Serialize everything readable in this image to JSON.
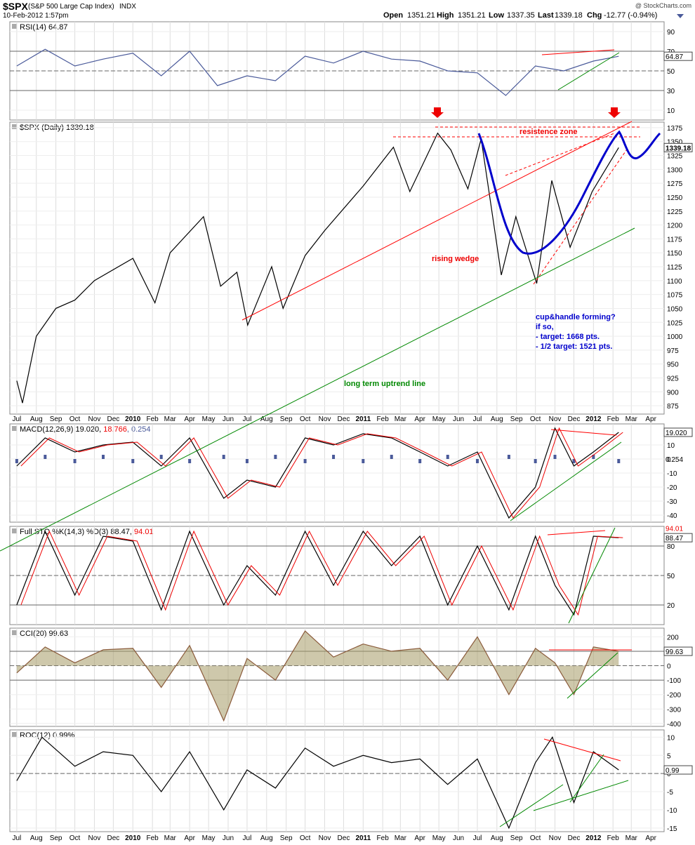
{
  "header": {
    "symbol": "$SPX",
    "name": "(S&P 500 Large Cap Index)",
    "exchange": "INDX",
    "date": "10-Feb-2012 1:57pm",
    "watermark": "@ StockCharts.com",
    "open_label": "Open",
    "open": "1351.21",
    "high_label": "High",
    "high": "1351.21",
    "low_label": "Low",
    "low": "1337.35",
    "last_label": "Last",
    "last": "1339.18",
    "chg_label": "Chg",
    "chg": "-12.77 (-0.94%)"
  },
  "colors": {
    "price": "#000000",
    "annotation_red": "#ff0000",
    "trend_green": "#008000",
    "cup_blue": "#0000cc",
    "rsi": "#4a5a9a",
    "macd_hist": "#4a5a9a",
    "cci_fill": "#a59a66",
    "cci_line": "#8a5a3a"
  },
  "chart_data": [
    {
      "type": "line",
      "panel": "rsi",
      "title": "RSI(14) 64.87",
      "current_value_label": "64.87",
      "y_ticks": [
        "90",
        "70",
        "50",
        "30",
        "10"
      ],
      "ylim": [
        0,
        100
      ],
      "reference_lines": [
        70,
        50,
        30
      ],
      "x": [
        "2009-07-01",
        "2009-08-15",
        "2009-10-01",
        "2009-11-15",
        "2010-01-01",
        "2010-02-15",
        "2010-04-01",
        "2010-05-15",
        "2010-07-01",
        "2010-08-15",
        "2010-10-01",
        "2010-11-15",
        "2011-01-01",
        "2011-02-15",
        "2011-04-01",
        "2011-05-15",
        "2011-07-01",
        "2011-08-15",
        "2011-10-01",
        "2011-11-15",
        "2012-01-01",
        "2012-02-10"
      ],
      "values": [
        55,
        72,
        55,
        62,
        68,
        45,
        70,
        35,
        45,
        40,
        65,
        58,
        70,
        62,
        60,
        50,
        48,
        25,
        55,
        50,
        60,
        64.87
      ]
    },
    {
      "type": "line",
      "panel": "price",
      "title": "$SPX (Daily) 1339.18",
      "current_value_label": "1339.18",
      "y_ticks": [
        "1375",
        "1350",
        "1325",
        "1300",
        "1275",
        "1250",
        "1225",
        "1200",
        "1175",
        "1150",
        "1125",
        "1100",
        "1075",
        "1050",
        "1025",
        "1000",
        "975",
        "950",
        "925",
        "900",
        "875"
      ],
      "ylim": [
        860,
        1385
      ],
      "series": [
        {
          "x": [
            "2009-07-01",
            "2009-07-10",
            "2009-08-01",
            "2009-09-01",
            "2009-10-01",
            "2009-11-01",
            "2010-01-01",
            "2010-02-05",
            "2010-03-01",
            "2010-04-23",
            "2010-05-20",
            "2010-06-15",
            "2010-07-02",
            "2010-08-09",
            "2010-08-27",
            "2010-10-01",
            "2010-11-01",
            "2011-01-01",
            "2011-02-18",
            "2011-03-16",
            "2011-04-29",
            "2011-05-20",
            "2011-06-16",
            "2011-07-07",
            "2011-08-08",
            "2011-08-31",
            "2011-10-03",
            "2011-10-27",
            "2011-11-25",
            "2011-12-30",
            "2012-02-10"
          ],
          "values": [
            920,
            880,
            1000,
            1050,
            1065,
            1100,
            1140,
            1060,
            1150,
            1215,
            1090,
            1115,
            1020,
            1125,
            1050,
            1145,
            1190,
            1270,
            1340,
            1260,
            1365,
            1335,
            1265,
            1355,
            1110,
            1215,
            1095,
            1280,
            1160,
            1260,
            1339.18
          ]
        }
      ],
      "annotations": [
        {
          "text": "resistence zone",
          "color": "red"
        },
        {
          "text": "rising wedge",
          "color": "red"
        },
        {
          "text": "long term uptrend line",
          "color": "green"
        },
        {
          "text": "cup&handle forming?",
          "color": "blue"
        },
        {
          "text": "if so,",
          "color": "blue"
        },
        {
          "text": "- target: 1668 pts.",
          "color": "blue"
        },
        {
          "text": "- 1/2 target: 1521 pts.",
          "color": "blue"
        }
      ]
    },
    {
      "type": "line",
      "panel": "macd",
      "title_main": "MACD(12,26,9) 19.020, ",
      "title_signal": "18.766",
      "title_hist": ", 0.254",
      "current_value_label": "19.020",
      "hist_value_label": "0.254",
      "y_ticks": [
        "10",
        "0",
        "-10",
        "-20",
        "-30",
        "-40"
      ],
      "ylim": [
        -45,
        25
      ],
      "x": [
        "2009-07-01",
        "2009-08-15",
        "2009-10-01",
        "2009-11-15",
        "2010-01-01",
        "2010-02-15",
        "2010-04-01",
        "2010-05-25",
        "2010-07-01",
        "2010-08-15",
        "2010-10-01",
        "2010-11-15",
        "2011-01-01",
        "2011-02-15",
        "2011-04-01",
        "2011-05-15",
        "2011-07-01",
        "2011-08-20",
        "2011-10-01",
        "2011-11-01",
        "2011-12-01",
        "2012-01-01",
        "2012-02-10"
      ],
      "values": [
        -5,
        15,
        5,
        10,
        12,
        -5,
        15,
        -28,
        -15,
        -20,
        15,
        10,
        18,
        15,
        5,
        -5,
        5,
        -42,
        -20,
        22,
        -5,
        5,
        19.02
      ]
    },
    {
      "type": "line",
      "panel": "stochastic",
      "title_main": "Full STO %K(14,3) %D(3) 88.47, ",
      "title_d": "94.01",
      "k_label": "88.47",
      "d_label": "94.01",
      "y_ticks": [
        "80",
        "50",
        "20"
      ],
      "ylim": [
        0,
        100
      ],
      "reference_lines": [
        80,
        50,
        20
      ],
      "x": [
        "2009-07-01",
        "2009-08-15",
        "2009-10-01",
        "2009-11-15",
        "2010-01-01",
        "2010-02-15",
        "2010-04-01",
        "2010-05-25",
        "2010-07-01",
        "2010-08-15",
        "2010-10-01",
        "2010-11-15",
        "2011-01-01",
        "2011-02-15",
        "2011-04-01",
        "2011-05-15",
        "2011-07-01",
        "2011-08-20",
        "2011-10-01",
        "2011-11-01",
        "2011-12-01",
        "2012-01-01",
        "2012-02-10"
      ],
      "values": [
        20,
        95,
        30,
        90,
        85,
        15,
        95,
        20,
        60,
        30,
        95,
        40,
        95,
        60,
        90,
        20,
        80,
        15,
        90,
        40,
        10,
        90,
        88.47
      ]
    },
    {
      "type": "area",
      "panel": "cci",
      "title": "CCI(20) 99.63",
      "current_value_label": "99.63",
      "y_ticks": [
        "200",
        "100",
        "0",
        "-100",
        "-200",
        "-300",
        "-400"
      ],
      "ylim": [
        -420,
        260
      ],
      "reference_lines": [
        100,
        0,
        -100
      ],
      "x": [
        "2009-07-01",
        "2009-08-15",
        "2009-10-01",
        "2009-11-15",
        "2010-01-01",
        "2010-02-15",
        "2010-04-01",
        "2010-05-25",
        "2010-07-01",
        "2010-08-15",
        "2010-10-01",
        "2010-11-15",
        "2011-01-01",
        "2011-02-15",
        "2011-04-01",
        "2011-05-15",
        "2011-07-01",
        "2011-08-20",
        "2011-10-01",
        "2011-11-01",
        "2011-12-01",
        "2012-01-01",
        "2012-02-10"
      ],
      "values": [
        -50,
        130,
        20,
        110,
        120,
        -150,
        140,
        -380,
        50,
        -100,
        240,
        60,
        150,
        100,
        120,
        -100,
        200,
        -200,
        120,
        20,
        -200,
        130,
        99.63
      ]
    },
    {
      "type": "line",
      "panel": "roc",
      "title": "ROC(12) 0.99%",
      "current_value_label": "0.99",
      "y_ticks": [
        "10",
        "5",
        "0",
        "-5",
        "-10",
        "-15"
      ],
      "ylim": [
        -16,
        12
      ],
      "reference_lines": [
        0
      ],
      "x": [
        "2009-07-01",
        "2009-08-10",
        "2009-10-01",
        "2009-11-15",
        "2010-01-01",
        "2010-02-15",
        "2010-04-01",
        "2010-05-25",
        "2010-07-01",
        "2010-08-15",
        "2010-10-01",
        "2010-11-15",
        "2011-01-01",
        "2011-02-15",
        "2011-04-01",
        "2011-05-15",
        "2011-07-01",
        "2011-08-20",
        "2011-10-01",
        "2011-10-28",
        "2011-12-01",
        "2012-01-01",
        "2012-02-10"
      ],
      "values": [
        -2,
        10,
        2,
        6,
        5,
        -5,
        6,
        -10,
        1,
        -4,
        7,
        2,
        5,
        3,
        4,
        -3,
        4,
        -15,
        3,
        10,
        -8,
        6,
        0.99
      ]
    }
  ],
  "x_axis": {
    "labels": [
      "Jul",
      "Aug",
      "Sep",
      "Oct",
      "Nov",
      "Dec",
      "2010",
      "Feb",
      "Mar",
      "Apr",
      "May",
      "Jun",
      "Jul",
      "Aug",
      "Sep",
      "Oct",
      "Nov",
      "Dec",
      "2011",
      "Feb",
      "Mar",
      "Apr",
      "May",
      "Jun",
      "Jul",
      "Aug",
      "Sep",
      "Oct",
      "Nov",
      "Dec",
      "2012",
      "Feb",
      "Mar",
      "Apr"
    ],
    "dates": [
      "2009-07-01",
      "2009-08-01",
      "2009-09-01",
      "2009-10-01",
      "2009-11-01",
      "2009-12-01",
      "2010-01-01",
      "2010-02-01",
      "2010-03-01",
      "2010-04-01",
      "2010-05-01",
      "2010-06-01",
      "2010-07-01",
      "2010-08-01",
      "2010-09-01",
      "2010-10-01",
      "2010-11-01",
      "2010-12-01",
      "2011-01-01",
      "2011-02-01",
      "2011-03-01",
      "2011-04-01",
      "2011-05-01",
      "2011-06-01",
      "2011-07-01",
      "2011-08-01",
      "2011-09-01",
      "2011-10-01",
      "2011-11-01",
      "2011-12-01",
      "2012-01-01",
      "2012-02-01",
      "2012-03-01",
      "2012-04-01"
    ]
  }
}
